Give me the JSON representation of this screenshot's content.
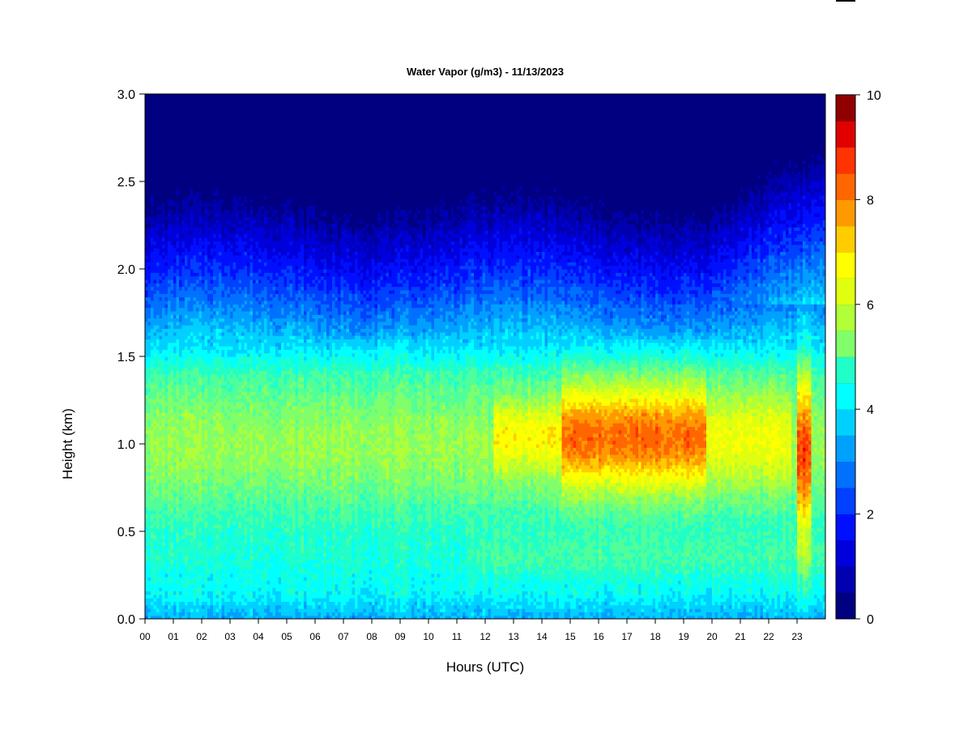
{
  "chart_data": {
    "type": "heatmap",
    "title": "Water Vapor (g/m3) - 11/13/2023",
    "xlabel": "Hours (UTC)",
    "ylabel": "Height (km)",
    "xlim": [
      0,
      24
    ],
    "ylim": [
      0,
      3
    ],
    "x_ticks": [
      "00",
      "01",
      "02",
      "03",
      "04",
      "05",
      "06",
      "07",
      "08",
      "09",
      "10",
      "11",
      "12",
      "13",
      "14",
      "15",
      "16",
      "17",
      "18",
      "19",
      "20",
      "21",
      "22",
      "23"
    ],
    "y_ticks": [
      "0.0",
      "0.5",
      "1.0",
      "1.5",
      "2.0",
      "2.5",
      "3.0"
    ],
    "colorbar": {
      "min": 0,
      "max": 10,
      "levels": 20,
      "tick_labels": [
        "0",
        "2",
        "4",
        "6",
        "8",
        "10"
      ],
      "colors": [
        "#000080",
        "#0000b0",
        "#0000dd",
        "#0010ff",
        "#0040ff",
        "#0070ff",
        "#00a0ff",
        "#00d0ff",
        "#00ffff",
        "#20ffc8",
        "#50ff9a",
        "#80ff6a",
        "#b0ff38",
        "#e0ff10",
        "#ffff00",
        "#ffcc00",
        "#ff9900",
        "#ff6600",
        "#ff3300",
        "#e00000",
        "#900000"
      ]
    },
    "grid": false
  }
}
